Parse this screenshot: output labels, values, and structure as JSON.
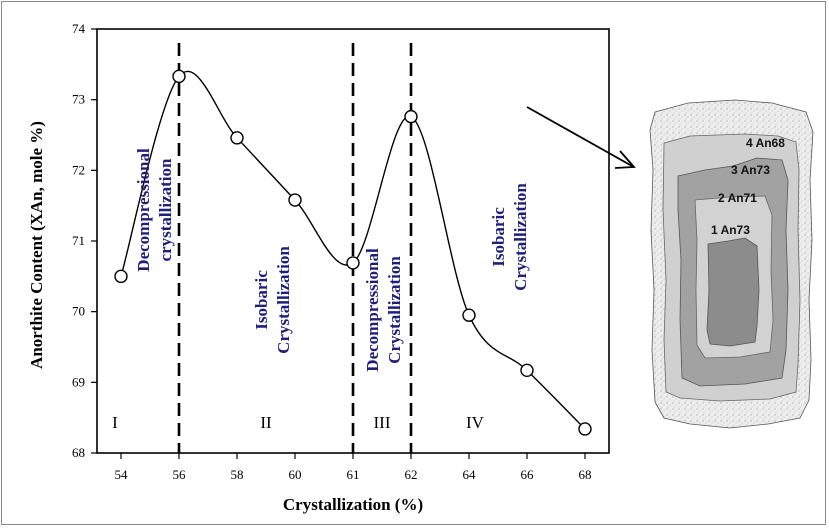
{
  "chart_data": {
    "type": "line",
    "title": "",
    "xlabel": "Crystallization (%)",
    "ylabel": "Anorthite Content (XAn, mole %)",
    "x_ticks": [
      "54",
      "56",
      "58",
      "60",
      "61",
      "62",
      "64",
      "66",
      "68"
    ],
    "y_ticks": [
      "68",
      "69",
      "70",
      "71",
      "72",
      "73",
      "74"
    ],
    "ylim": [
      68,
      74
    ],
    "series": [
      {
        "points": [
          {
            "x": "54",
            "y": 70.5
          },
          {
            "x": "56",
            "y": 73.33
          },
          {
            "x": "58",
            "y": 72.46
          },
          {
            "x": "60",
            "y": 71.58
          },
          {
            "x": "61",
            "y": 70.69
          },
          {
            "x": "62",
            "y": 72.76
          },
          {
            "x": "64",
            "y": 69.95
          },
          {
            "x": "66",
            "y": 69.17
          },
          {
            "x": "68",
            "y": 68.34
          }
        ]
      }
    ],
    "dividers_at": [
      "56",
      "61",
      "62"
    ],
    "regions": [
      {
        "numeral": "I",
        "label_lines": [
          "Decompressional",
          "crystallization"
        ]
      },
      {
        "numeral": "II",
        "label_lines": [
          "Isobaric",
          "Crystallization"
        ]
      },
      {
        "numeral": "III",
        "label_lines": [
          "Decompressional",
          "Crystallization"
        ]
      },
      {
        "numeral": "IV",
        "label_lines": [
          "Isobaric",
          "Crystallization"
        ]
      }
    ],
    "grid": false,
    "legend": "none"
  },
  "crystal": {
    "zones": [
      "4  An68",
      "3  An73",
      "2  An71",
      "1  An73"
    ]
  }
}
